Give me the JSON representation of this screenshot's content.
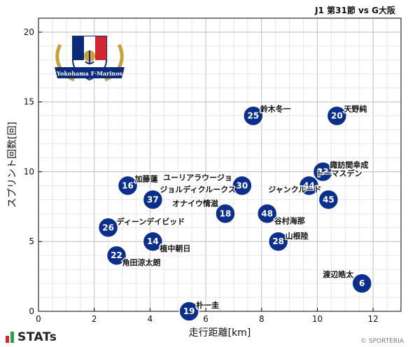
{
  "match_title": "J1 第31節 vs G大阪",
  "branding": {
    "stats_text": "STATs",
    "copyright": "© SPORTERIA",
    "club_logo_text": "Yokohama F·Marinos"
  },
  "colors": {
    "marker": "#0d2f8c",
    "marker_stroke": "#ffffff",
    "grid": "#d6d6d6",
    "stats_green": "#2e9e4f",
    "stats_red": "#d9232d"
  },
  "chart_data": {
    "type": "scatter",
    "xlabel": "走行距離[km]",
    "ylabel": "スプリント回数[回]",
    "xlim": [
      0,
      13
    ],
    "ylim": [
      0,
      21
    ],
    "xticks": [
      0,
      2,
      4,
      6,
      8,
      10,
      12
    ],
    "yticks": [
      0,
      5,
      10,
      15,
      20
    ],
    "grid": true,
    "points": [
      {
        "number": "25",
        "name": "鈴木冬一",
        "x": 7.7,
        "y": 14
      },
      {
        "number": "20",
        "name": "天野純",
        "x": 10.7,
        "y": 14
      },
      {
        "number": "33",
        "name": "諏訪間幸成",
        "x": 10.2,
        "y": 10
      },
      {
        "number": "44",
        "name": "トーマスデン",
        "x": 9.7,
        "y": 9
      },
      {
        "number": "30",
        "name": "ユーリアラウージョ",
        "x": 7.3,
        "y": 9
      },
      {
        "number": "16",
        "name": "加藤蓮",
        "x": 3.2,
        "y": 9
      },
      {
        "number": "37",
        "name": "ジョルディクルークス",
        "x": 4.1,
        "y": 8
      },
      {
        "number": "45",
        "name": "ジャンクルード",
        "x": 10.4,
        "y": 8
      },
      {
        "number": "18",
        "name": "オナイウ情滋",
        "x": 6.7,
        "y": 7
      },
      {
        "number": "48",
        "name": "谷村海那",
        "x": 8.2,
        "y": 7
      },
      {
        "number": "26",
        "name": "ディーンデイビッド",
        "x": 2.5,
        "y": 6
      },
      {
        "number": "14",
        "name": "植中朝日",
        "x": 4.1,
        "y": 5
      },
      {
        "number": "28",
        "name": "山根陸",
        "x": 8.6,
        "y": 5
      },
      {
        "number": "22",
        "name": "角田涼太朗",
        "x": 2.8,
        "y": 4
      },
      {
        "number": "6",
        "name": "渡辺皓太",
        "x": 11.6,
        "y": 2
      },
      {
        "number": "19",
        "name": "朴一圭",
        "x": 5.4,
        "y": 0
      }
    ]
  }
}
